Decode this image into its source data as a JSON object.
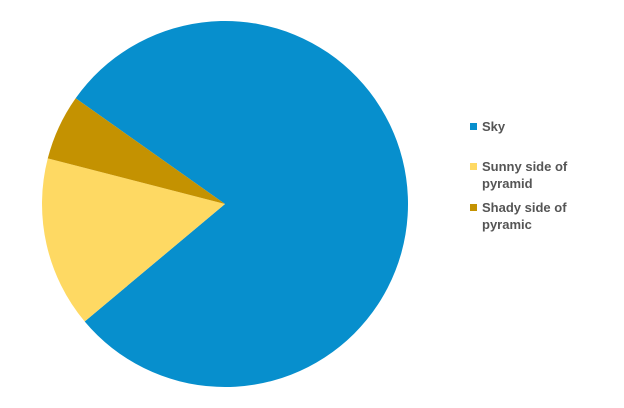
{
  "chart_data": {
    "type": "pie",
    "title": "",
    "start_angle_deg": 215.3,
    "direction": "clockwise",
    "slices": [
      {
        "label": "Sky",
        "value": 79.1,
        "color": "#078fcd"
      },
      {
        "label": "Sunny side of pyramid",
        "value": 15.1,
        "color": "#fed963"
      },
      {
        "label": "Shady side of pyramic",
        "value": 5.8,
        "color": "#c49201"
      }
    ],
    "legend": {
      "placement": "right",
      "items": [
        {
          "label_lines": [
            "Sky"
          ],
          "color": "#078fcd"
        },
        {
          "label_lines": [
            "Sunny side of",
            "pyramid"
          ],
          "color": "#fed963"
        },
        {
          "label_lines": [
            "Shady side of",
            "pyramic"
          ],
          "color": "#c49201"
        }
      ]
    }
  }
}
